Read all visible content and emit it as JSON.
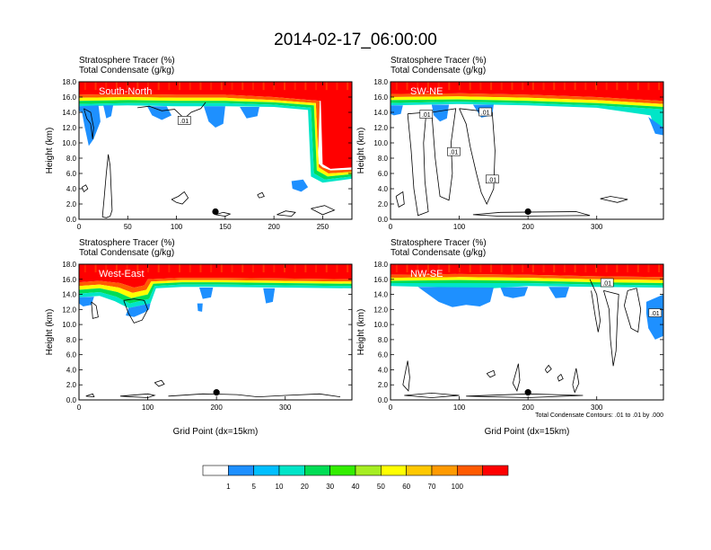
{
  "title": "2014-02-17_06:00:00",
  "colors": {
    "scale": [
      "#ffffff",
      "#1e90ff",
      "#00bfff",
      "#00e5c8",
      "#00dd55",
      "#33ee00",
      "#a6ee22",
      "#ffff00",
      "#ffc800",
      "#ff9a00",
      "#ff5a00",
      "#ff0000"
    ]
  },
  "chart_data": [
    {
      "type": "heatmap",
      "panel_label": "South-North",
      "line1": "Stratosphere Tracer   (%)",
      "line2": "Total Condensate   (g/kg)",
      "ylabel": "Height (km)",
      "xlabel": "",
      "xlim": [
        0,
        280
      ],
      "ylim": [
        0,
        18
      ],
      "xticks": [
        0,
        50,
        100,
        150,
        200,
        250
      ],
      "yticks": [
        "0.0",
        "2.0",
        "4.0",
        "6.0",
        "8.0",
        "10.0",
        "12.0",
        "14.0",
        "16.0",
        "18.0"
      ],
      "marker_x": 140,
      "contour_labels": [
        {
          "text": ".01",
          "x": 108,
          "y": 12.9
        }
      ],
      "note": ""
    },
    {
      "type": "heatmap",
      "panel_label": "SW-NE",
      "line1": "Stratosphere Tracer   (%)",
      "line2": "Total Condensate   (g/kg)",
      "ylabel": "Height (km)",
      "xlabel": "",
      "xlim": [
        0,
        397
      ],
      "ylim": [
        0,
        18
      ],
      "xticks": [
        0,
        100,
        200,
        300
      ],
      "yticks": [
        "0.0",
        "2.0",
        "4.0",
        "6.0",
        "8.0",
        "10.0",
        "12.0",
        "14.0",
        "16.0",
        "18.0"
      ],
      "marker_x": 200,
      "contour_labels": [
        {
          "text": ".01",
          "x": 52,
          "y": 13.7
        },
        {
          "text": ".01",
          "x": 138,
          "y": 14.0
        },
        {
          "text": ".01",
          "x": 92,
          "y": 8.8
        },
        {
          "text": ".01",
          "x": 148,
          "y": 5.2
        }
      ],
      "note": ""
    },
    {
      "type": "heatmap",
      "panel_label": "West-East",
      "line1": "Stratosphere Tracer   (%)",
      "line2": "Total Condensate   (g/kg)",
      "ylabel": "Height (km)",
      "xlabel": "Grid Point (dx=15km)",
      "xlim": [
        0,
        397
      ],
      "ylim": [
        0,
        18
      ],
      "xticks": [
        0,
        100,
        200,
        300
      ],
      "yticks": [
        "0.0",
        "2.0",
        "4.0",
        "6.0",
        "8.0",
        "10.0",
        "12.0",
        "14.0",
        "16.0",
        "18.0"
      ],
      "marker_x": 200,
      "contour_labels": [],
      "note": ""
    },
    {
      "type": "heatmap",
      "panel_label": "NW-SE",
      "line1": "Stratosphere Tracer   (%)",
      "line2": "Total Condensate   (g/kg)",
      "ylabel": "Height (km)",
      "xlabel": "Grid Point (dx=15km)",
      "xlim": [
        0,
        397
      ],
      "ylim": [
        0,
        18
      ],
      "xticks": [
        0,
        100,
        200,
        300
      ],
      "yticks": [
        "0.0",
        "2.0",
        "4.0",
        "6.0",
        "8.0",
        "10.0",
        "12.0",
        "14.0",
        "16.0",
        "18.0"
      ],
      "marker_x": 200,
      "contour_labels": [
        {
          "text": ".01",
          "x": 315,
          "y": 15.5
        },
        {
          "text": ".01",
          "x": 385,
          "y": 11.5
        }
      ],
      "note": "Total Condensate Contours: .01 to .01 by .000"
    }
  ],
  "colorbar": {
    "labels": [
      "1",
      "5",
      "10",
      "20",
      "30",
      "40",
      "50",
      "60",
      "70",
      "100"
    ]
  }
}
